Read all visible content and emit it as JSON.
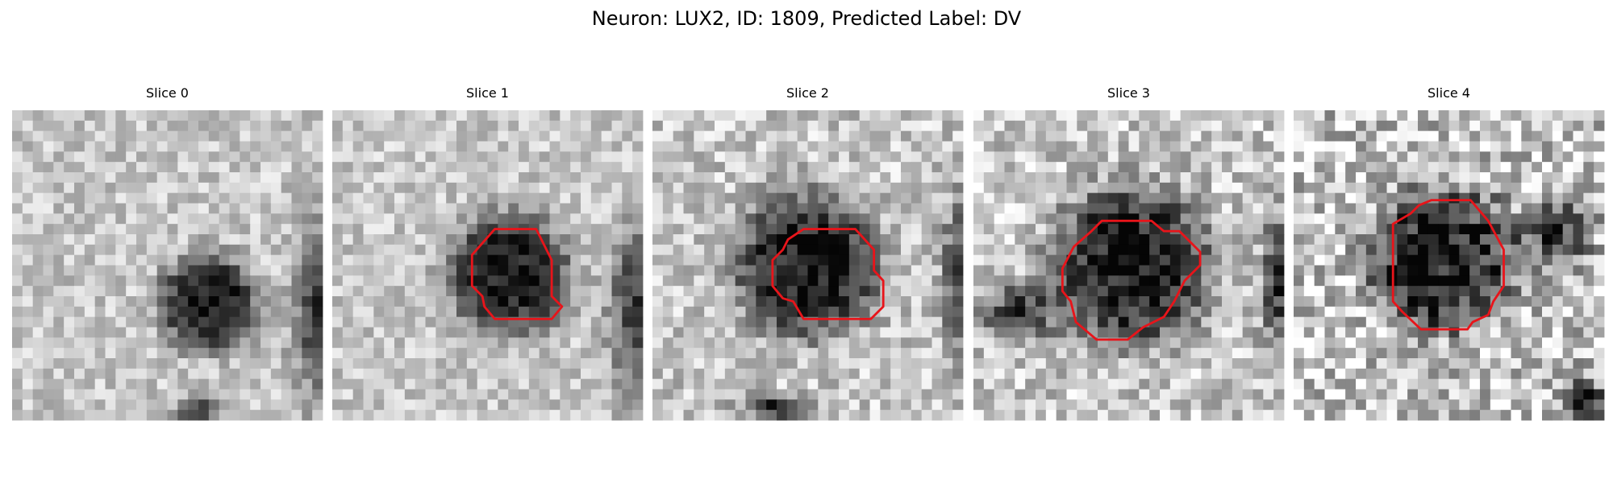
{
  "title": "Neuron: LUX2, ID: 1809, Predicted Label: DV",
  "panels": [
    {
      "title": "Slice 0"
    },
    {
      "title": "Slice 1"
    },
    {
      "title": "Slice 2"
    },
    {
      "title": "Slice 3"
    },
    {
      "title": "Slice 4"
    }
  ]
}
